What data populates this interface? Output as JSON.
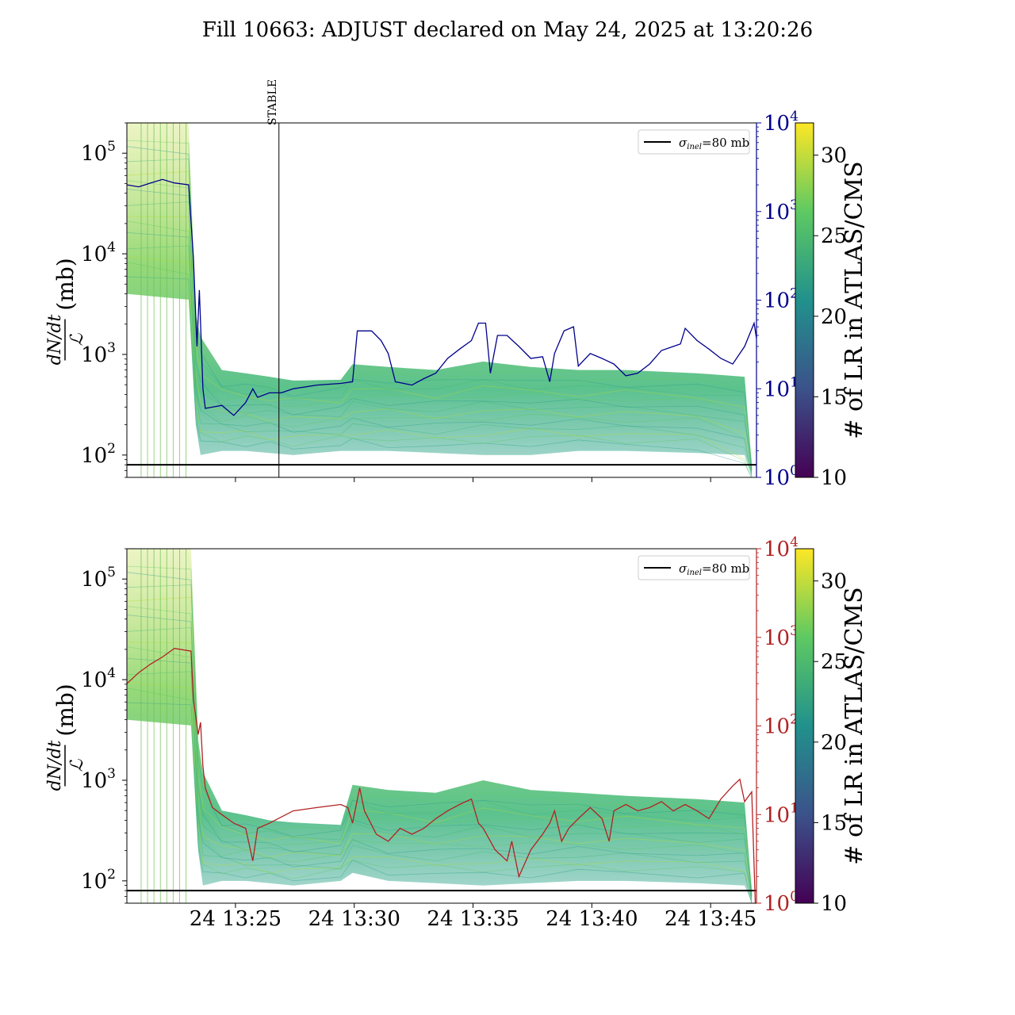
{
  "title": "Fill 10663: ADJUST declared on May 24, 2025 at 13:20:26",
  "colors": {
    "top_line": "#00008b",
    "bottom_line": "#b22222",
    "sigma_line": "#000000",
    "colormap": [
      "#440154",
      "#3b528b",
      "#21918c",
      "#5ec962",
      "#fde725"
    ]
  },
  "chart_data": [
    {
      "type": "line",
      "panel": "top",
      "y_scale": "log",
      "ylim": [
        60,
        200000
      ],
      "yticks": [
        {
          "v": 100,
          "label": "10",
          "exp": "2"
        },
        {
          "v": 1000,
          "label": "10",
          "exp": "3"
        },
        {
          "v": 10000,
          "label": "10",
          "exp": "4"
        },
        {
          "v": 100000,
          "label": "10",
          "exp": "5"
        }
      ],
      "ylabel_frac_num": "dN/dt",
      "ylabel_frac_den": "ℒ",
      "ylabel_unit": "(mb)",
      "y2_scale": "log",
      "y2lim": [
        1,
        10000
      ],
      "y2ticks": [
        {
          "v": 1,
          "label": "10",
          "exp": "0"
        },
        {
          "v": 10,
          "label": "10",
          "exp": "1"
        },
        {
          "v": 100,
          "label": "10",
          "exp": "2"
        },
        {
          "v": 1000,
          "label": "10",
          "exp": "3"
        },
        {
          "v": 10000,
          "label": "10",
          "exp": "4"
        }
      ],
      "x_range": [
        "13:20:26",
        "13:46:56"
      ],
      "xticklabels_visible": false,
      "stable_marker": {
        "time": "13:26:50",
        "label": "STABLE"
      },
      "legend": {
        "position": "top-right",
        "label_sym": "σ",
        "label_sub": "inel",
        "label_rest": "=80 mb"
      },
      "sigma_inel_mb": 80,
      "band_series": {
        "description_levels": "per-bunch dN/dt/L curves colored by number of long-range encounters",
        "low": [
          [
            0,
            4000
          ],
          [
            2.6,
            3500
          ],
          [
            2.9,
            200
          ],
          [
            3.1,
            100
          ],
          [
            4,
            110
          ],
          [
            5,
            110
          ],
          [
            6,
            105
          ],
          [
            7,
            100
          ],
          [
            9,
            110
          ],
          [
            11,
            110
          ],
          [
            13,
            105
          ],
          [
            15,
            100
          ],
          [
            17,
            100
          ],
          [
            19,
            110
          ],
          [
            21,
            110
          ],
          [
            24,
            105
          ],
          [
            26,
            100
          ],
          [
            26.3,
            60
          ]
        ],
        "high": [
          [
            0,
            200000
          ],
          [
            2.6,
            200000
          ],
          [
            2.9,
            2500
          ],
          [
            3.1,
            1500
          ],
          [
            4,
            700
          ],
          [
            5,
            650
          ],
          [
            6,
            600
          ],
          [
            7,
            550
          ],
          [
            9,
            560
          ],
          [
            9.5,
            800
          ],
          [
            11,
            750
          ],
          [
            13,
            700
          ],
          [
            15,
            850
          ],
          [
            17,
            750
          ],
          [
            19,
            700
          ],
          [
            21,
            700
          ],
          [
            24,
            650
          ],
          [
            26,
            600
          ],
          [
            26.3,
            80
          ]
        ]
      },
      "line_series": {
        "name": "",
        "points": [
          [
            0,
            2000
          ],
          [
            0.5,
            1900
          ],
          [
            1,
            2100
          ],
          [
            1.5,
            2300
          ],
          [
            2,
            2100
          ],
          [
            2.6,
            2000
          ],
          [
            2.8,
            300
          ],
          [
            2.95,
            30
          ],
          [
            3.05,
            130
          ],
          [
            3.2,
            10
          ],
          [
            3.3,
            6
          ],
          [
            4,
            6.5
          ],
          [
            4.5,
            5
          ],
          [
            5,
            7
          ],
          [
            5.3,
            10
          ],
          [
            5.5,
            8
          ],
          [
            6,
            9
          ],
          [
            6.5,
            9
          ],
          [
            7,
            10
          ],
          [
            8,
            11
          ],
          [
            9,
            11.5
          ],
          [
            9.5,
            12
          ],
          [
            9.7,
            45
          ],
          [
            10.3,
            45
          ],
          [
            10.7,
            35
          ],
          [
            11,
            25
          ],
          [
            11.3,
            12
          ],
          [
            12,
            11
          ],
          [
            12.5,
            13
          ],
          [
            13,
            15
          ],
          [
            13.5,
            22
          ],
          [
            14,
            28
          ],
          [
            14.5,
            35
          ],
          [
            14.8,
            55
          ],
          [
            15.1,
            55
          ],
          [
            15.3,
            15
          ],
          [
            15.6,
            40
          ],
          [
            16,
            40
          ],
          [
            16.5,
            30
          ],
          [
            17,
            22
          ],
          [
            17.5,
            23
          ],
          [
            17.8,
            12
          ],
          [
            18,
            25
          ],
          [
            18.4,
            45
          ],
          [
            18.8,
            50
          ],
          [
            19,
            18
          ],
          [
            19.5,
            25
          ],
          [
            20,
            22
          ],
          [
            20.5,
            19
          ],
          [
            21,
            14
          ],
          [
            21.5,
            15
          ],
          [
            22,
            19
          ],
          [
            22.5,
            27
          ],
          [
            23,
            30
          ],
          [
            23.3,
            32
          ],
          [
            23.5,
            48
          ],
          [
            24,
            35
          ],
          [
            24.5,
            28
          ],
          [
            25,
            22
          ],
          [
            25.5,
            19
          ],
          [
            26,
            30
          ],
          [
            26.4,
            55
          ],
          [
            26.6,
            25
          ],
          [
            26.8,
            22
          ],
          [
            26.9,
            1
          ]
        ]
      }
    },
    {
      "type": "line",
      "panel": "bottom",
      "y_scale": "log",
      "ylim": [
        60,
        200000
      ],
      "yticks": [
        {
          "v": 100,
          "label": "10",
          "exp": "2"
        },
        {
          "v": 1000,
          "label": "10",
          "exp": "3"
        },
        {
          "v": 10000,
          "label": "10",
          "exp": "4"
        },
        {
          "v": 100000,
          "label": "10",
          "exp": "5"
        }
      ],
      "ylabel_frac_num": "dN/dt",
      "ylabel_frac_den": "ℒ",
      "ylabel_unit": "(mb)",
      "y2_scale": "log",
      "y2lim": [
        1,
        10000
      ],
      "y2ticks": [
        {
          "v": 1,
          "label": "10",
          "exp": "0"
        },
        {
          "v": 10,
          "label": "10",
          "exp": "1"
        },
        {
          "v": 100,
          "label": "10",
          "exp": "2"
        },
        {
          "v": 1000,
          "label": "10",
          "exp": "3"
        },
        {
          "v": 10000,
          "label": "10",
          "exp": "4"
        }
      ],
      "x_range": [
        "13:20:26",
        "13:46:56"
      ],
      "xticks": [
        {
          "t": 4.57,
          "label": "24 13:25"
        },
        {
          "t": 9.57,
          "label": "24 13:30"
        },
        {
          "t": 14.57,
          "label": "24 13:35"
        },
        {
          "t": 19.57,
          "label": "24 13:40"
        },
        {
          "t": 24.57,
          "label": "24 13:45"
        }
      ],
      "legend": {
        "position": "top-right",
        "label_sym": "σ",
        "label_sub": "inel",
        "label_rest": "=80 mb"
      },
      "sigma_inel_mb": 80,
      "band_series": {
        "low": [
          [
            0,
            4000
          ],
          [
            2.7,
            3500
          ],
          [
            3.0,
            200
          ],
          [
            3.2,
            90
          ],
          [
            4,
            100
          ],
          [
            5,
            100
          ],
          [
            6,
            95
          ],
          [
            7,
            90
          ],
          [
            9,
            100
          ],
          [
            9.5,
            120
          ],
          [
            11,
            100
          ],
          [
            13,
            95
          ],
          [
            15,
            90
          ],
          [
            17,
            95
          ],
          [
            19,
            100
          ],
          [
            21,
            100
          ],
          [
            24,
            95
          ],
          [
            26,
            90
          ],
          [
            26.3,
            60
          ]
        ],
        "high": [
          [
            0,
            200000
          ],
          [
            2.7,
            200000
          ],
          [
            3.0,
            2500
          ],
          [
            3.2,
            1200
          ],
          [
            4,
            500
          ],
          [
            5,
            450
          ],
          [
            6,
            400
          ],
          [
            7,
            380
          ],
          [
            9,
            360
          ],
          [
            9.5,
            900
          ],
          [
            11,
            800
          ],
          [
            13,
            750
          ],
          [
            15,
            1000
          ],
          [
            17,
            800
          ],
          [
            19,
            750
          ],
          [
            21,
            700
          ],
          [
            24,
            650
          ],
          [
            26,
            600
          ],
          [
            26.3,
            80
          ]
        ]
      },
      "line_series": {
        "name": "",
        "points": [
          [
            0,
            300
          ],
          [
            0.5,
            400
          ],
          [
            1,
            500
          ],
          [
            1.5,
            600
          ],
          [
            2,
            750
          ],
          [
            2.7,
            700
          ],
          [
            2.8,
            200
          ],
          [
            3.0,
            80
          ],
          [
            3.1,
            110
          ],
          [
            3.2,
            35
          ],
          [
            3.3,
            20
          ],
          [
            3.6,
            12
          ],
          [
            4,
            10
          ],
          [
            4.5,
            8
          ],
          [
            5,
            7
          ],
          [
            5.3,
            3
          ],
          [
            5.5,
            7
          ],
          [
            6,
            8
          ],
          [
            7,
            11
          ],
          [
            8,
            12
          ],
          [
            9,
            13
          ],
          [
            9.3,
            12
          ],
          [
            9.5,
            8
          ],
          [
            9.8,
            20
          ],
          [
            10,
            11
          ],
          [
            10.5,
            6
          ],
          [
            11,
            5
          ],
          [
            11.5,
            7
          ],
          [
            12,
            6
          ],
          [
            12.5,
            7
          ],
          [
            13,
            9
          ],
          [
            13.5,
            11
          ],
          [
            14,
            13
          ],
          [
            14.5,
            15
          ],
          [
            14.8,
            8
          ],
          [
            15,
            7
          ],
          [
            15.5,
            4
          ],
          [
            16,
            3
          ],
          [
            16.2,
            5
          ],
          [
            16.5,
            2
          ],
          [
            17,
            4
          ],
          [
            17.5,
            6
          ],
          [
            17.8,
            8
          ],
          [
            18,
            11
          ],
          [
            18.3,
            5
          ],
          [
            18.6,
            7
          ],
          [
            19,
            9
          ],
          [
            19.5,
            12
          ],
          [
            20,
            9
          ],
          [
            20.3,
            5
          ],
          [
            20.5,
            11
          ],
          [
            21,
            13
          ],
          [
            21.5,
            11
          ],
          [
            22,
            12
          ],
          [
            22.5,
            14
          ],
          [
            23,
            11
          ],
          [
            23.5,
            13
          ],
          [
            24,
            11
          ],
          [
            24.5,
            9
          ],
          [
            25,
            15
          ],
          [
            25.5,
            21
          ],
          [
            25.8,
            25
          ],
          [
            26,
            14
          ],
          [
            26.3,
            18
          ],
          [
            26.45,
            1
          ]
        ]
      },
      "colorbar": {
        "label": "# of LR in ATLAS/CMS",
        "range": [
          10,
          32
        ],
        "ticks": [
          "10",
          "15",
          "20",
          "25",
          "30"
        ]
      }
    }
  ]
}
